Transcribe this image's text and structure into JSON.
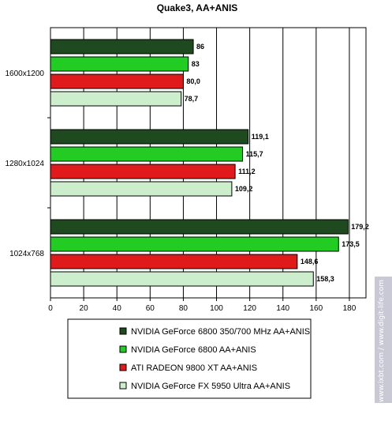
{
  "chart_data": {
    "type": "bar",
    "orientation": "horizontal",
    "title": "Quake3, AA+ANIS",
    "categories": [
      "1600x1200",
      "1280x1024",
      "1024x768"
    ],
    "series": [
      {
        "name": "NVIDIA GeForce 6800 350/700 MHz AA+ANIS",
        "color": "#1f4a1f",
        "values": [
          86,
          119.1,
          179.2
        ],
        "labels": [
          "86",
          "119,1",
          "179,2"
        ]
      },
      {
        "name": "NVIDIA GeForce 6800 AA+ANIS",
        "color": "#22cc22",
        "values": [
          83,
          115.7,
          173.5
        ],
        "labels": [
          "83",
          "115,7",
          "173,5"
        ]
      },
      {
        "name": "ATI RADEON 9800 XT AA+ANIS",
        "color": "#e01a1a",
        "values": [
          80.0,
          111.2,
          148.6
        ],
        "labels": [
          "80,0",
          "111,2",
          "148,6"
        ]
      },
      {
        "name": "NVIDIA GeForce FX 5950 Ultra AA+ANIS",
        "color": "#cdeecd",
        "values": [
          78.7,
          109.2,
          158.3
        ],
        "labels": [
          "78,7",
          "109,2",
          "158,3"
        ]
      }
    ],
    "xlim": [
      0,
      190
    ],
    "xticks": [
      0,
      20,
      40,
      60,
      80,
      100,
      120,
      140,
      160,
      180
    ],
    "grid": true,
    "legend_position": "bottom"
  },
  "watermark": "© 2004 www.ixbt.com / www.digit-life.com"
}
